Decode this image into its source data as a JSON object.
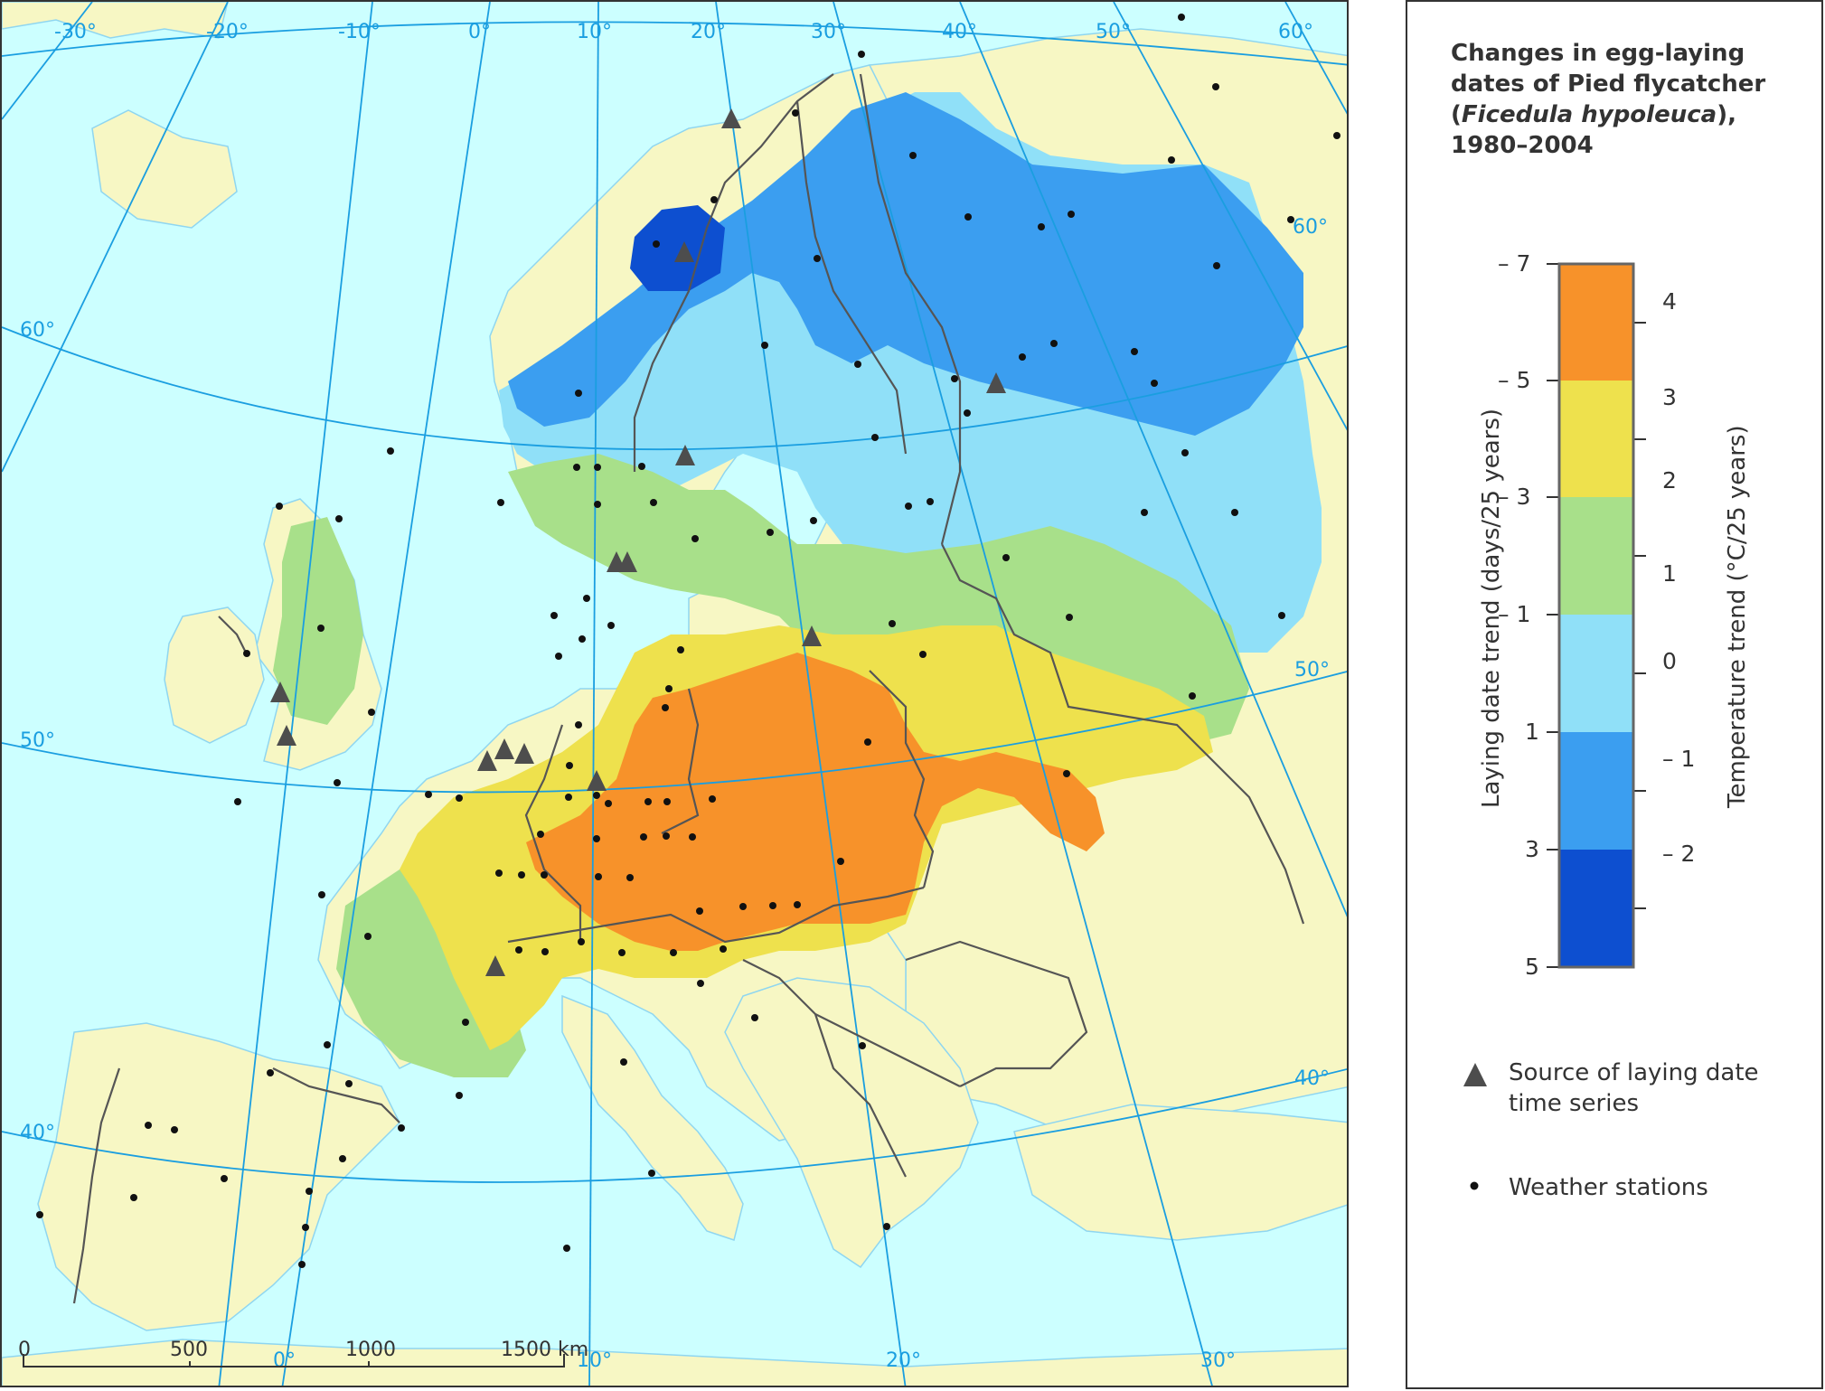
{
  "legend": {
    "title_line1": "Changes in egg-laying",
    "title_line2": "dates of Pied flycatcher",
    "title_open": "(",
    "title_species": "Ficedula hypoleuca",
    "title_close": "),",
    "title_years": "1980–2004",
    "laying_axis_label": "Laying date trend (days/25 years)",
    "temp_axis_label": "Temperature trend (°C/25 years)",
    "laying_ticks": [
      "– 7",
      "– 5",
      "– 3",
      "– 1",
      "1",
      "3",
      "5"
    ],
    "temp_ticks": [
      "4",
      "3",
      "2",
      "1",
      "0",
      "– 1",
      "– 2"
    ],
    "class_colors": [
      "#f7922a",
      "#eee14d",
      "#a8e08a",
      "#90e0f8",
      "#3b9ef0",
      "#0d4fd0"
    ],
    "source_label_line1": "Source of laying date",
    "source_label_line2": "time series",
    "stations_label": "Weather stations",
    "source_icon": "triangle-marker-icon",
    "station_icon": "dot-marker-icon"
  },
  "map": {
    "colors": {
      "sea": "#ccffff",
      "land": "#f7f7c4",
      "graticule": "#1a9ee0",
      "border": "#555555"
    },
    "meridian_labels_top": [
      "-30°",
      "-20°",
      "-10°",
      "0°",
      "10°",
      "20°",
      "30°",
      "40°",
      "50°",
      "60°"
    ],
    "meridian_labels_bottom": [
      "0°",
      "10°",
      "20°",
      "30°"
    ],
    "parallel_labels_left": [
      "60°",
      "50°",
      "40°"
    ],
    "parallel_labels_right": [
      "60°",
      "50°",
      "40°"
    ],
    "scale_bar_labels": [
      "0",
      "500",
      "1000",
      "1500 km"
    ]
  }
}
